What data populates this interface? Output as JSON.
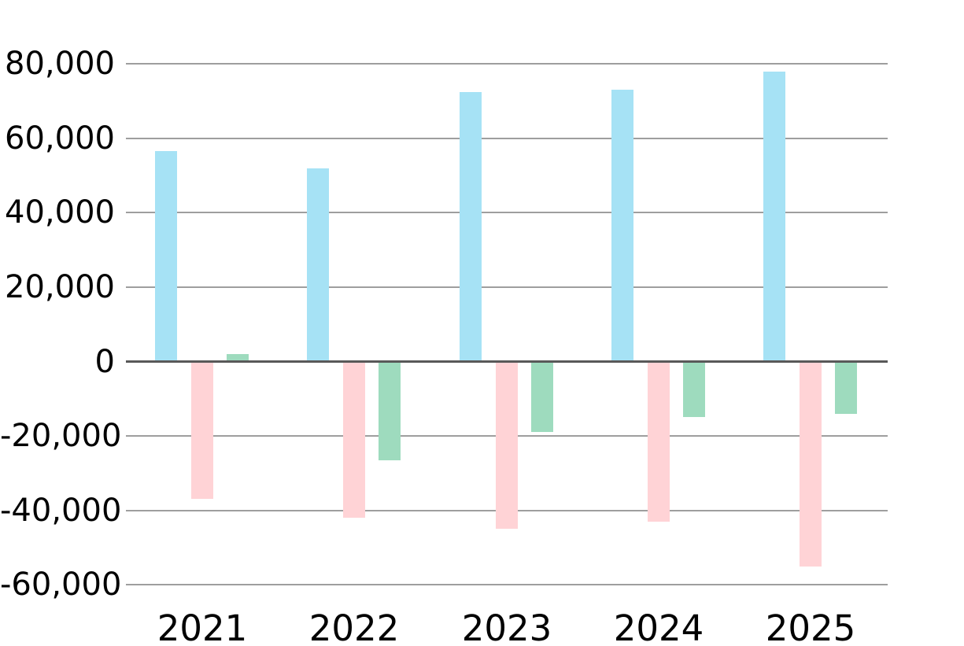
{
  "chart_data": {
    "type": "bar",
    "title": "",
    "xlabel": "",
    "ylabel": "",
    "categories": [
      "2021",
      "2022",
      "2023",
      "2024",
      "2025"
    ],
    "series": [
      {
        "name": "blue-series",
        "color": "#A6E2F5",
        "values": [
          56500,
          52000,
          72500,
          73000,
          78000
        ]
      },
      {
        "name": "pink-series",
        "color": "#FFD3D6",
        "values": [
          -37000,
          -42000,
          -45000,
          -43000,
          -55000
        ]
      },
      {
        "name": "green-series",
        "color": "#9EDBBE",
        "values": [
          2000,
          -26500,
          -19000,
          -15000,
          -14000
        ]
      }
    ],
    "y_axis": {
      "min": -60000,
      "max": 80000,
      "step": 20000,
      "tick_values": [
        80000,
        60000,
        40000,
        20000,
        0,
        -20000,
        -40000,
        -60000
      ],
      "tick_labels": [
        "80,000",
        "60,000",
        "40,000",
        "20,000",
        "0",
        "-20,000",
        "-40,000",
        "-60,000"
      ]
    },
    "grid": true,
    "legend": "none",
    "colors": {
      "background": "#FFFFFF",
      "gridline": "#9E9E9E",
      "zero_line": "#595959",
      "text": "#000000"
    }
  }
}
